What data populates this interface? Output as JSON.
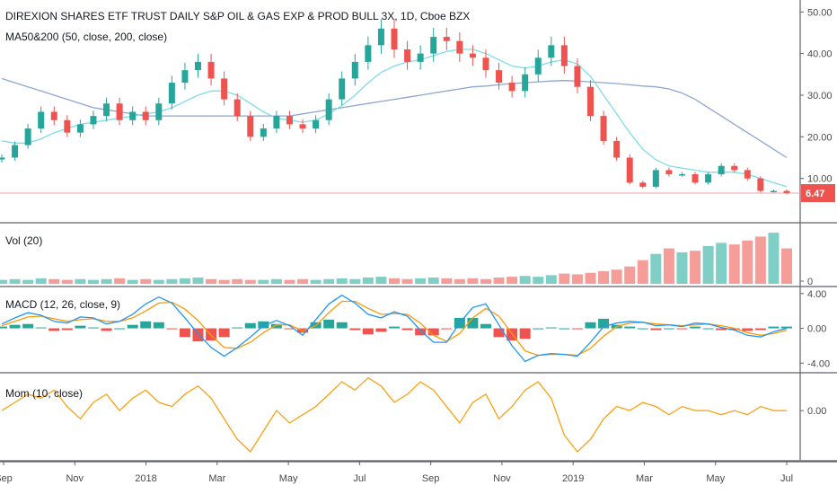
{
  "chart_data": [
    {
      "type": "candlestick",
      "title": "DIREXION SHARES ETF TRUST DAILY S&P OIL & GAS EXP & PROD BULL 3X, 1D, Cboe BZX",
      "indicator": "MA50&200 (50, close, 200, close)",
      "ylim": [
        0,
        52
      ],
      "yticks": [
        "50.00",
        "40.00",
        "30.00",
        "20.00",
        "10.00"
      ],
      "last_price": "6.47",
      "colors": {
        "up": "#26a69a",
        "down": "#ef5350",
        "ma50": "#7ddde8",
        "ma200": "#8ea6d3",
        "price_line": "#f4a3a3"
      },
      "close": [
        15,
        18,
        22,
        26,
        24,
        21,
        23,
        25,
        28,
        24,
        26,
        24,
        28,
        33,
        36,
        38,
        34,
        29,
        25,
        20,
        22,
        25,
        23,
        22,
        24,
        29,
        34,
        38,
        42,
        46,
        41,
        38,
        40,
        44,
        43,
        40,
        39,
        36,
        33,
        31,
        35,
        39,
        42,
        37,
        32,
        25,
        19,
        15,
        9,
        8,
        12,
        11,
        11,
        9,
        11,
        13,
        12,
        10,
        7,
        7,
        6.5
      ],
      "ma50": [
        19,
        18.5,
        18.5,
        19.5,
        21,
        22,
        23,
        23.5,
        24,
        24.5,
        25,
        25.5,
        26,
        27,
        28.5,
        30,
        31,
        31,
        30,
        28,
        26,
        24.5,
        24,
        23.5,
        24,
        25.5,
        27.5,
        30,
        33,
        35.5,
        37,
        38,
        38.5,
        39.5,
        40.5,
        41,
        41,
        40,
        38.5,
        37,
        36.5,
        37,
        38,
        38.5,
        37.5,
        34.5,
        30,
        25.5,
        21,
        17,
        14.5,
        13,
        12.5,
        12,
        11.5,
        11.5,
        11.5,
        11,
        10,
        9,
        8
      ],
      "ma200": [
        34,
        33,
        32,
        31,
        30,
        29,
        28,
        27,
        26.5,
        26,
        25.5,
        25,
        25,
        25,
        25,
        25,
        25,
        25,
        25,
        25,
        25,
        25,
        25,
        25.5,
        26,
        26.5,
        27,
        27.5,
        28,
        28.5,
        29,
        29.5,
        30,
        30.5,
        31,
        31.5,
        32,
        32.2,
        32.5,
        32.8,
        33,
        33.2,
        33.4,
        33.5,
        33.4,
        33.2,
        33,
        32.8,
        32.5,
        32.2,
        32,
        31.5,
        30.5,
        29,
        27,
        25,
        23,
        21,
        19,
        17,
        15
      ]
    },
    {
      "type": "bar",
      "title": "Vol (20)",
      "yticks": [
        "0"
      ],
      "values": [
        5,
        6,
        5,
        7,
        6,
        5,
        6,
        5,
        6,
        7,
        5,
        6,
        5,
        6,
        7,
        8,
        6,
        5,
        6,
        5,
        5,
        6,
        5,
        6,
        5,
        6,
        7,
        6,
        8,
        9,
        7,
        6,
        7,
        8,
        7,
        6,
        7,
        6,
        8,
        9,
        10,
        9,
        11,
        13,
        12,
        14,
        16,
        18,
        22,
        30,
        38,
        45,
        40,
        42,
        48,
        52,
        50,
        55,
        60,
        65,
        45
      ]
    },
    {
      "type": "line",
      "title": "MACD (12, 26, close, 9)",
      "yticks": [
        "4.00",
        "0.00",
        "-4.00"
      ],
      "ylim": [
        -5,
        4.7
      ],
      "colors": {
        "macd": "#2196f3",
        "signal": "#ff9800",
        "hist_pos": "#26a69a",
        "hist_neg": "#ef5350"
      },
      "macd": [
        0.5,
        1.2,
        1.8,
        1.5,
        0.8,
        0.6,
        1.3,
        1.2,
        0.5,
        0.8,
        1.6,
        2.8,
        3.6,
        2.9,
        1.2,
        -0.6,
        -2.2,
        -3.2,
        -2.2,
        -1.0,
        0.3,
        0.9,
        0.3,
        -0.8,
        1.0,
        2.8,
        3.8,
        2.9,
        1.6,
        1.2,
        1.9,
        1.4,
        -0.2,
        -1.6,
        -1.6,
        0.6,
        2.4,
        2.8,
        0.4,
        -2.0,
        -3.8,
        -3.1,
        -2.9,
        -3.0,
        -3.2,
        -1.6,
        0.2,
        0.6,
        0.8,
        0.7,
        0.3,
        0.4,
        0.2,
        0.6,
        0.5,
        0.1,
        -0.2,
        -0.8,
        -1.0,
        -0.4,
        0.0
      ],
      "signal": [
        0.3,
        0.8,
        1.3,
        1.4,
        1.1,
        0.8,
        1.0,
        1.1,
        0.8,
        0.8,
        1.2,
        2.0,
        2.9,
        3.0,
        2.2,
        0.9,
        -0.8,
        -2.2,
        -2.3,
        -1.6,
        -0.5,
        0.4,
        0.4,
        -0.3,
        0.3,
        1.8,
        3.1,
        3.1,
        2.3,
        1.6,
        1.7,
        1.6,
        0.6,
        -0.8,
        -1.5,
        -0.6,
        1.2,
        2.3,
        1.4,
        -0.6,
        -2.6,
        -3.1,
        -3.0,
        -3.0,
        -3.1,
        -2.3,
        -0.9,
        0.2,
        0.6,
        0.7,
        0.5,
        0.4,
        0.3,
        0.4,
        0.5,
        0.3,
        0.0,
        -0.5,
        -0.8,
        -0.6,
        -0.2
      ]
    },
    {
      "type": "line",
      "title": "Mom (10, close)",
      "yticks": [
        "0.00"
      ],
      "ylim": [
        -12,
        9
      ],
      "color": "#ff9800",
      "values": [
        0,
        2,
        4,
        3,
        5,
        1,
        -2,
        2,
        4,
        0,
        3,
        5,
        2,
        1,
        4,
        6,
        3,
        -2,
        -7,
        -10,
        -5,
        0,
        -3,
        -1,
        1,
        4,
        7,
        5,
        8,
        6,
        2,
        4,
        7,
        5,
        1,
        -3,
        2,
        4,
        -2,
        1,
        5,
        7,
        3,
        -6,
        -10,
        -7,
        -2,
        1,
        0,
        2,
        1,
        -1,
        1,
        0,
        0,
        -1,
        0,
        -1,
        1,
        0,
        0
      ]
    }
  ],
  "x_axis": {
    "labels": [
      "Sep",
      "Nov",
      "2018",
      "Mar",
      "May",
      "Jul",
      "Sep",
      "Nov",
      "2019",
      "Mar",
      "May",
      "Jul"
    ]
  }
}
